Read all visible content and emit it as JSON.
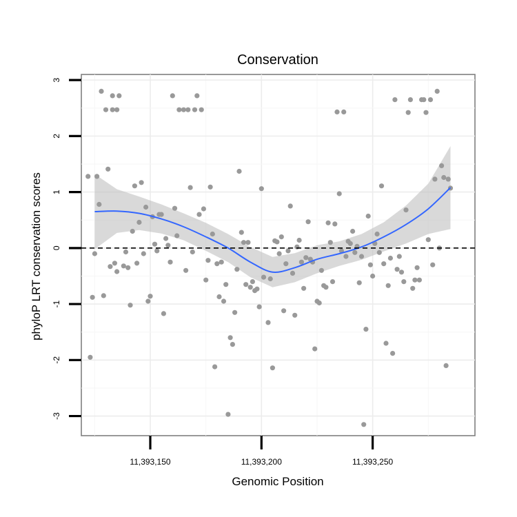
{
  "chart_data": {
    "type": "scatter",
    "title": "Conservation",
    "xlabel": "Genomic Position",
    "ylabel": "phyloP LRT conservation scores",
    "xlim": [
      11393119,
      11393296
    ],
    "ylim": [
      -3.35,
      3.1
    ],
    "x_ticks": [
      {
        "value": 11393150,
        "label": "11,393,150"
      },
      {
        "value": 11393200,
        "label": "11,393,200"
      },
      {
        "value": 11393250,
        "label": "11,393,250"
      }
    ],
    "y_ticks": [
      {
        "value": -3,
        "label": "-3"
      },
      {
        "value": -2,
        "label": "-2"
      },
      {
        "value": -1,
        "label": "-1"
      },
      {
        "value": 0,
        "label": "0"
      },
      {
        "value": 1,
        "label": "1"
      },
      {
        "value": 2,
        "label": "2"
      },
      {
        "value": 3,
        "label": "3"
      }
    ],
    "reference_line": {
      "y": 0,
      "style": "dashed"
    },
    "grid": true,
    "colors": {
      "points": "#999999",
      "smooth": "#3366ff",
      "band": "#bfbfbf"
    },
    "points": [
      [
        11393122,
        1.28
      ],
      [
        11393123,
        -1.95
      ],
      [
        11393124,
        -0.88
      ],
      [
        11393125,
        -0.1
      ],
      [
        11393126,
        1.28
      ],
      [
        11393127,
        0.78
      ],
      [
        11393128,
        2.8
      ],
      [
        11393129,
        -0.85
      ],
      [
        11393130,
        2.47
      ],
      [
        11393131,
        1.41
      ],
      [
        11393132,
        -0.33
      ],
      [
        11393133,
        2.47
      ],
      [
        11393133,
        2.72
      ],
      [
        11393134,
        -0.27
      ],
      [
        11393135,
        -0.42
      ],
      [
        11393135,
        2.47
      ],
      [
        11393136,
        2.72
      ],
      [
        11393138,
        -0.32
      ],
      [
        11393139,
        -0.07
      ],
      [
        11393140,
        -0.35
      ],
      [
        11393141,
        -1.02
      ],
      [
        11393142,
        0.3
      ],
      [
        11393143,
        1.11
      ],
      [
        11393144,
        -0.27
      ],
      [
        11393145,
        0.46
      ],
      [
        11393146,
        1.17
      ],
      [
        11393147,
        -0.1
      ],
      [
        11393148,
        0.73
      ],
      [
        11393149,
        -0.95
      ],
      [
        11393150,
        -0.86
      ],
      [
        11393151,
        0.56
      ],
      [
        11393152,
        0.07
      ],
      [
        11393153,
        -0.05
      ],
      [
        11393154,
        0.6
      ],
      [
        11393155,
        0.6
      ],
      [
        11393156,
        -1.17
      ],
      [
        11393157,
        0.17
      ],
      [
        11393158,
        0.05
      ],
      [
        11393159,
        -0.25
      ],
      [
        11393160,
        2.72
      ],
      [
        11393161,
        0.71
      ],
      [
        11393162,
        0.22
      ],
      [
        11393163,
        2.47
      ],
      [
        11393165,
        2.47
      ],
      [
        11393166,
        -0.4
      ],
      [
        11393167,
        2.47
      ],
      [
        11393168,
        1.08
      ],
      [
        11393169,
        -0.07
      ],
      [
        11393170,
        2.47
      ],
      [
        11393171,
        2.72
      ],
      [
        11393172,
        0.6
      ],
      [
        11393173,
        2.47
      ],
      [
        11393174,
        0.7
      ],
      [
        11393175,
        -0.57
      ],
      [
        11393176,
        -0.22
      ],
      [
        11393177,
        1.09
      ],
      [
        11393178,
        0.25
      ],
      [
        11393179,
        -2.12
      ],
      [
        11393180,
        -0.28
      ],
      [
        11393181,
        -0.87
      ],
      [
        11393182,
        -0.25
      ],
      [
        11393183,
        -0.95
      ],
      [
        11393184,
        -0.65
      ],
      [
        11393185,
        -2.97
      ],
      [
        11393186,
        -1.6
      ],
      [
        11393187,
        -1.72
      ],
      [
        11393188,
        -1.15
      ],
      [
        11393189,
        -0.38
      ],
      [
        11393190,
        1.37
      ],
      [
        11393191,
        0.28
      ],
      [
        11393192,
        0.1
      ],
      [
        11393193,
        -0.65
      ],
      [
        11393194,
        0.1
      ],
      [
        11393195,
        -0.7
      ],
      [
        11393196,
        -0.6
      ],
      [
        11393197,
        -0.76
      ],
      [
        11393198,
        -0.73
      ],
      [
        11393199,
        -1.05
      ],
      [
        11393200,
        1.06
      ],
      [
        11393201,
        -0.52
      ],
      [
        11393203,
        -1.33
      ],
      [
        11393204,
        -0.55
      ],
      [
        11393205,
        -2.14
      ],
      [
        11393206,
        0.13
      ],
      [
        11393207,
        0.11
      ],
      [
        11393208,
        -0.1
      ],
      [
        11393209,
        0.2
      ],
      [
        11393210,
        -1.12
      ],
      [
        11393211,
        -0.28
      ],
      [
        11393212,
        -0.05
      ],
      [
        11393213,
        0.75
      ],
      [
        11393214,
        -0.45
      ],
      [
        11393215,
        -1.2
      ],
      [
        11393216,
        0.02
      ],
      [
        11393217,
        0.14
      ],
      [
        11393218,
        -0.25
      ],
      [
        11393219,
        -0.72
      ],
      [
        11393220,
        -0.17
      ],
      [
        11393221,
        0.47
      ],
      [
        11393222,
        -0.2
      ],
      [
        11393223,
        -0.25
      ],
      [
        11393224,
        -1.8
      ],
      [
        11393225,
        -0.95
      ],
      [
        11393226,
        -0.98
      ],
      [
        11393227,
        -0.4
      ],
      [
        11393228,
        -0.67
      ],
      [
        11393229,
        -0.7
      ],
      [
        11393230,
        0.45
      ],
      [
        11393231,
        0.1
      ],
      [
        11393232,
        -0.6
      ],
      [
        11393233,
        0.43
      ],
      [
        11393234,
        2.43
      ],
      [
        11393235,
        0.97
      ],
      [
        11393236,
        -0.05
      ],
      [
        11393237,
        2.43
      ],
      [
        11393238,
        -0.15
      ],
      [
        11393239,
        0.12
      ],
      [
        11393240,
        0.08
      ],
      [
        11393241,
        0.3
      ],
      [
        11393242,
        -0.08
      ],
      [
        11393243,
        0.03
      ],
      [
        11393244,
        -0.62
      ],
      [
        11393245,
        -0.15
      ],
      [
        11393246,
        -3.15
      ],
      [
        11393247,
        -1.45
      ],
      [
        11393248,
        0.57
      ],
      [
        11393249,
        -0.3
      ],
      [
        11393250,
        -0.5
      ],
      [
        11393251,
        0.08
      ],
      [
        11393252,
        0.25
      ],
      [
        11393253,
        -0.08
      ],
      [
        11393254,
        1.11
      ],
      [
        11393255,
        -0.28
      ],
      [
        11393256,
        -1.7
      ],
      [
        11393257,
        -0.67
      ],
      [
        11393258,
        -0.18
      ],
      [
        11393259,
        -1.88
      ],
      [
        11393260,
        2.65
      ],
      [
        11393261,
        -0.38
      ],
      [
        11393262,
        -0.15
      ],
      [
        11393263,
        -0.43
      ],
      [
        11393264,
        -0.6
      ],
      [
        11393265,
        0.68
      ],
      [
        11393266,
        2.42
      ],
      [
        11393267,
        2.65
      ],
      [
        11393268,
        -0.72
      ],
      [
        11393269,
        -0.57
      ],
      [
        11393270,
        -0.35
      ],
      [
        11393271,
        -0.57
      ],
      [
        11393272,
        2.65
      ],
      [
        11393273,
        2.65
      ],
      [
        11393274,
        2.42
      ],
      [
        11393275,
        0.15
      ],
      [
        11393276,
        2.65
      ],
      [
        11393277,
        -0.3
      ],
      [
        11393278,
        1.23
      ],
      [
        11393279,
        2.8
      ],
      [
        11393280,
        0.0
      ],
      [
        11393281,
        1.47
      ],
      [
        11393282,
        1.26
      ],
      [
        11393283,
        -2.1
      ],
      [
        11393284,
        1.23
      ],
      [
        11393285,
        1.07
      ]
    ],
    "smooth_line": {
      "x": [
        11393125,
        11393135,
        11393145,
        11393155,
        11393165,
        11393175,
        11393185,
        11393195,
        11393205,
        11393215,
        11393225,
        11393235,
        11393245,
        11393255,
        11393265,
        11393275,
        11393285
      ],
      "y": [
        0.65,
        0.66,
        0.62,
        0.52,
        0.38,
        0.2,
        0.0,
        -0.25,
        -0.43,
        -0.35,
        -0.2,
        -0.1,
        0.02,
        0.2,
        0.42,
        0.7,
        1.08
      ],
      "ci_upper": [
        1.32,
        1.05,
        0.92,
        0.78,
        0.62,
        0.45,
        0.25,
        0.02,
        -0.16,
        -0.09,
        0.05,
        0.12,
        0.25,
        0.46,
        0.76,
        1.15,
        1.82
      ],
      "ci_lower": [
        -0.02,
        0.27,
        0.32,
        0.26,
        0.14,
        -0.05,
        -0.25,
        -0.52,
        -0.7,
        -0.61,
        -0.45,
        -0.32,
        -0.21,
        -0.06,
        0.08,
        0.25,
        0.34
      ]
    }
  }
}
